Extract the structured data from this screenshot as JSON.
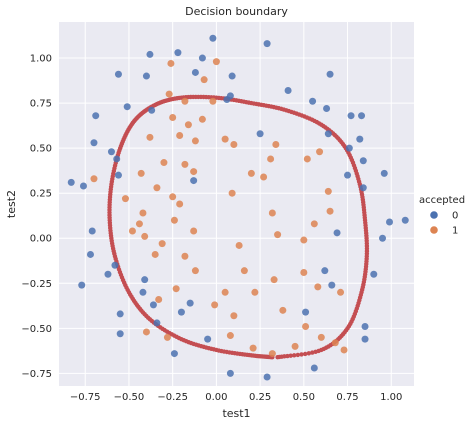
{
  "chart_data": {
    "type": "scatter",
    "title": "Decision boundary",
    "xlabel": "test1",
    "ylabel": "test2",
    "xlim": [
      -0.9,
      1.13
    ],
    "ylim": [
      -0.82,
      1.2
    ],
    "xticks": [
      -0.75,
      -0.5,
      -0.25,
      0.0,
      0.25,
      0.5,
      0.75,
      1.0
    ],
    "xtick_labels": [
      "−0.75",
      "−0.50",
      "−0.25",
      "0.00",
      "0.25",
      "0.50",
      "0.75",
      "1.00"
    ],
    "yticks": [
      -0.75,
      -0.5,
      -0.25,
      0.0,
      0.25,
      0.5,
      0.75,
      1.0
    ],
    "ytick_labels": [
      "−0.75",
      "−0.50",
      "−0.25",
      "0.00",
      "0.25",
      "0.50",
      "0.75",
      "1.00"
    ],
    "grid": true,
    "background": "#eaeaf2",
    "legend": {
      "title": "accepted",
      "placement": "right",
      "entries": [
        {
          "label": "0",
          "color": "#4c72b0"
        },
        {
          "label": "1",
          "color": "#dd8452"
        }
      ]
    },
    "series": [
      {
        "name": "0",
        "color": "#4c72b0",
        "points": [
          [
            -0.02,
            1.11
          ],
          [
            0.29,
            1.08
          ],
          [
            -0.22,
            1.03
          ],
          [
            -0.38,
            1.02
          ],
          [
            -0.08,
            1.0
          ],
          [
            -0.4,
            0.9
          ],
          [
            -0.12,
            0.92
          ],
          [
            0.09,
            0.9
          ],
          [
            0.65,
            0.91
          ],
          [
            -0.56,
            0.91
          ],
          [
            -0.37,
            0.71
          ],
          [
            -0.51,
            0.73
          ],
          [
            -0.69,
            0.68
          ],
          [
            0.06,
            0.77
          ],
          [
            0.08,
            0.79
          ],
          [
            0.41,
            0.82
          ],
          [
            0.55,
            0.76
          ],
          [
            0.63,
            0.72
          ],
          [
            0.77,
            0.68
          ],
          [
            0.83,
            0.68
          ],
          [
            0.25,
            0.58
          ],
          [
            0.64,
            0.58
          ],
          [
            -0.7,
            0.53
          ],
          [
            -0.6,
            0.48
          ],
          [
            -0.57,
            0.44
          ],
          [
            0.82,
            0.55
          ],
          [
            0.84,
            0.43
          ],
          [
            0.96,
            0.36
          ],
          [
            -0.56,
            0.35
          ],
          [
            -0.83,
            0.31
          ],
          [
            -0.76,
            0.29
          ],
          [
            0.84,
            0.28
          ],
          [
            1.08,
            0.1
          ],
          [
            0.99,
            0.09
          ],
          [
            0.95,
            0.0
          ],
          [
            -0.71,
            0.04
          ],
          [
            -0.72,
            -0.09
          ],
          [
            -0.58,
            -0.15
          ],
          [
            -0.62,
            -0.2
          ],
          [
            -0.77,
            -0.26
          ],
          [
            0.66,
            -0.26
          ],
          [
            0.9,
            -0.2
          ],
          [
            -0.41,
            -0.23
          ],
          [
            -0.42,
            -0.3
          ],
          [
            -0.55,
            -0.42
          ],
          [
            -0.36,
            -0.37
          ],
          [
            -0.15,
            -0.36
          ],
          [
            0.51,
            -0.41
          ],
          [
            0.85,
            -0.49
          ],
          [
            -0.34,
            -0.47
          ],
          [
            0.85,
            -0.56
          ],
          [
            -0.24,
            -0.64
          ],
          [
            -0.05,
            -0.56
          ],
          [
            0.56,
            -0.72
          ],
          [
            0.08,
            -0.75
          ],
          [
            0.29,
            -0.77
          ],
          [
            -0.55,
            -0.53
          ],
          [
            -0.2,
            -0.41
          ],
          [
            0.62,
            -0.18
          ],
          [
            0.69,
            0.03
          ],
          [
            -0.13,
            0.32
          ],
          [
            0.75,
            0.35
          ],
          [
            0.76,
            0.5
          ]
        ]
      },
      {
        "name": "1",
        "color": "#dd8452",
        "points": [
          [
            -0.26,
            0.97
          ],
          [
            0.0,
            0.98
          ],
          [
            -0.07,
            0.88
          ],
          [
            -0.27,
            0.8
          ],
          [
            -0.18,
            0.76
          ],
          [
            -0.02,
            0.76
          ],
          [
            -0.25,
            0.67
          ],
          [
            -0.16,
            0.63
          ],
          [
            -0.08,
            0.66
          ],
          [
            -0.38,
            0.56
          ],
          [
            -0.21,
            0.57
          ],
          [
            -0.12,
            0.54
          ],
          [
            0.05,
            0.55
          ],
          [
            0.1,
            0.52
          ],
          [
            0.34,
            0.52
          ],
          [
            0.52,
            0.44
          ],
          [
            0.59,
            0.48
          ],
          [
            -0.3,
            0.42
          ],
          [
            -0.18,
            0.41
          ],
          [
            0.31,
            0.44
          ],
          [
            0.2,
            0.36
          ],
          [
            -0.13,
            0.37
          ],
          [
            -0.43,
            0.36
          ],
          [
            -0.7,
            0.33
          ],
          [
            -0.34,
            0.28
          ],
          [
            -0.25,
            0.23
          ],
          [
            0.09,
            0.25
          ],
          [
            0.64,
            0.26
          ],
          [
            0.32,
            0.14
          ],
          [
            -0.21,
            0.19
          ],
          [
            -0.52,
            0.22
          ],
          [
            0.65,
            0.15
          ],
          [
            -0.42,
            0.14
          ],
          [
            -0.44,
            0.08
          ],
          [
            -0.24,
            0.1
          ],
          [
            0.56,
            0.08
          ],
          [
            -0.13,
            0.04
          ],
          [
            -0.48,
            0.04
          ],
          [
            -0.31,
            -0.03
          ],
          [
            0.13,
            -0.04
          ],
          [
            0.5,
            -0.01
          ],
          [
            0.35,
            0.02
          ],
          [
            -0.35,
            -0.09
          ],
          [
            -0.18,
            -0.1
          ],
          [
            -0.12,
            -0.18
          ],
          [
            0.5,
            -0.19
          ],
          [
            0.16,
            -0.18
          ],
          [
            0.33,
            -0.23
          ],
          [
            -0.23,
            -0.28
          ],
          [
            0.05,
            -0.3
          ],
          [
            0.22,
            -0.3
          ],
          [
            0.58,
            -0.27
          ],
          [
            0.71,
            -0.3
          ],
          [
            -0.33,
            -0.34
          ],
          [
            -0.01,
            -0.37
          ],
          [
            0.38,
            -0.4
          ],
          [
            0.1,
            -0.43
          ],
          [
            0.51,
            -0.49
          ],
          [
            -0.4,
            -0.52
          ],
          [
            0.08,
            -0.54
          ],
          [
            0.6,
            -0.55
          ],
          [
            -0.28,
            -0.55
          ],
          [
            0.21,
            -0.61
          ],
          [
            0.45,
            -0.6
          ],
          [
            0.68,
            -0.58
          ],
          [
            0.32,
            -0.64
          ],
          [
            0.73,
            -0.62
          ],
          [
            -0.41,
            0.01
          ],
          [
            0.27,
            0.34
          ]
        ]
      },
      {
        "name": "",
        "color": "#c44e52",
        "kind": "boundary",
        "closed": false,
        "points": [
          [
            0.35,
            -0.66
          ],
          [
            0.6,
            -0.62
          ],
          [
            0.75,
            -0.5
          ],
          [
            0.83,
            -0.3
          ],
          [
            0.86,
            -0.1
          ],
          [
            0.85,
            0.1
          ],
          [
            0.82,
            0.3
          ],
          [
            0.74,
            0.5
          ],
          [
            0.6,
            0.63
          ],
          [
            0.4,
            0.71
          ],
          [
            0.2,
            0.75
          ],
          [
            0.0,
            0.78
          ],
          [
            -0.2,
            0.78
          ],
          [
            -0.35,
            0.74
          ],
          [
            -0.47,
            0.65
          ],
          [
            -0.55,
            0.5
          ],
          [
            -0.6,
            0.3
          ],
          [
            -0.61,
            0.1
          ],
          [
            -0.58,
            -0.1
          ],
          [
            -0.5,
            -0.3
          ],
          [
            -0.38,
            -0.45
          ],
          [
            -0.2,
            -0.56
          ],
          [
            0.0,
            -0.62
          ],
          [
            0.2,
            -0.65
          ],
          [
            0.32,
            -0.66
          ]
        ]
      }
    ]
  }
}
